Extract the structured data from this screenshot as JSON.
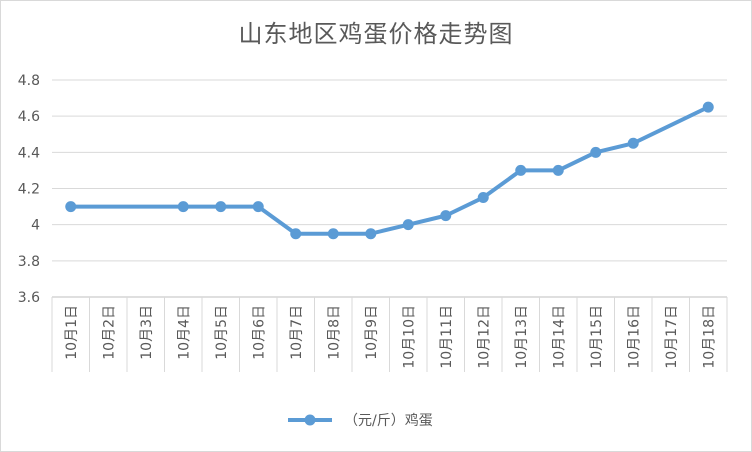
{
  "chart_data": {
    "type": "line",
    "title": "山东地区鸡蛋价格走势图",
    "xlabel": "",
    "ylabel": "",
    "categories": [
      "10月1日",
      "10月2日",
      "10月3日",
      "10月4日",
      "10月5日",
      "10月6日",
      "10月7日",
      "10月8日",
      "10月9日",
      "10月10日",
      "10月11日",
      "10月12日",
      "10月13日",
      "10月14日",
      "10月15日",
      "10月16日",
      "10月17日",
      "10月18日"
    ],
    "yticks": [
      "3.6",
      "3.8",
      "4",
      "4.2",
      "4.4",
      "4.6",
      "4.8"
    ],
    "ylim": [
      3.6,
      4.8
    ],
    "grid": true,
    "legend_position": "bottom",
    "series": [
      {
        "name": "（元/斤）鸡蛋",
        "color": "#5b9bd5",
        "points": [
          {
            "x": "10月1日",
            "y": 4.1
          },
          {
            "x": "10月4日",
            "y": 4.1
          },
          {
            "x": "10月5日",
            "y": 4.1
          },
          {
            "x": "10月6日",
            "y": 4.1
          },
          {
            "x": "10月7日",
            "y": 3.95
          },
          {
            "x": "10月8日",
            "y": 3.95
          },
          {
            "x": "10月9日",
            "y": 3.95
          },
          {
            "x": "10月10日",
            "y": 4.0
          },
          {
            "x": "10月11日",
            "y": 4.05
          },
          {
            "x": "10月12日",
            "y": 4.15
          },
          {
            "x": "10月13日",
            "y": 4.3
          },
          {
            "x": "10月14日",
            "y": 4.3
          },
          {
            "x": "10月15日",
            "y": 4.4
          },
          {
            "x": "10月16日",
            "y": 4.45
          },
          {
            "x": "10月18日",
            "y": 4.65
          }
        ]
      }
    ]
  }
}
